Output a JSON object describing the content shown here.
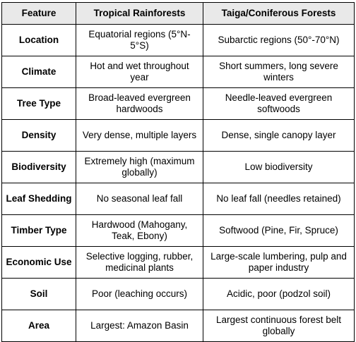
{
  "table": {
    "headers": [
      "Feature",
      "Tropical Rainforests",
      "Taiga/Coniferous Forests"
    ],
    "rows": [
      {
        "feature": "Location",
        "tropical": "Equatorial regions (5°N-5°S)",
        "taiga": "Subarctic regions (50°-70°N)"
      },
      {
        "feature": "Climate",
        "tropical": "Hot and wet throughout year",
        "taiga": "Short summers, long severe winters"
      },
      {
        "feature": "Tree Type",
        "tropical": "Broad-leaved evergreen hardwoods",
        "taiga": "Needle-leaved evergreen softwoods"
      },
      {
        "feature": "Density",
        "tropical": "Very dense, multiple layers",
        "taiga": "Dense, single canopy layer"
      },
      {
        "feature": "Biodiversity",
        "tropical": "Extremely high (maximum globally)",
        "taiga": "Low biodiversity"
      },
      {
        "feature": "Leaf Shedding",
        "tropical": "No seasonal leaf fall",
        "taiga": "No leaf fall (needles retained)"
      },
      {
        "feature": "Timber Type",
        "tropical": "Hardwood (Mahogany, Teak, Ebony)",
        "taiga": "Softwood (Pine, Fir, Spruce)"
      },
      {
        "feature": "Economic Use",
        "tropical": "Selective logging, rubber, medicinal plants",
        "taiga": "Large-scale lumbering, pulp and paper industry"
      },
      {
        "feature": "Soil",
        "tropical": "Poor (leaching occurs)",
        "taiga": "Acidic, poor (podzol soil)"
      },
      {
        "feature": "Area",
        "tropical": "Largest: Amazon Basin",
        "taiga": "Largest continuous forest belt globally"
      }
    ]
  }
}
